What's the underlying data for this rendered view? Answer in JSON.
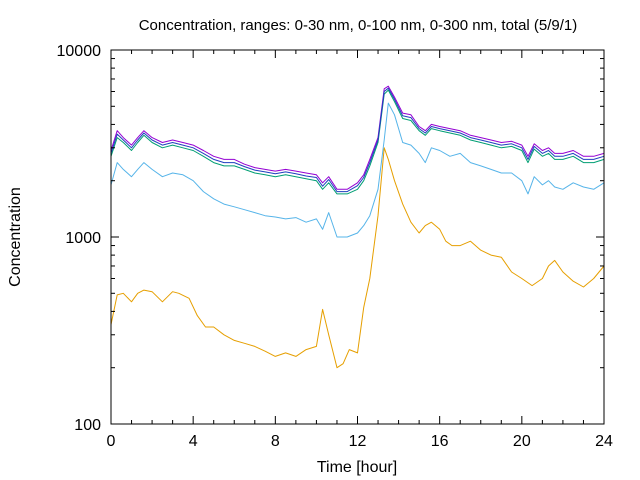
{
  "chart_data": {
    "type": "line",
    "title": "Concentration, ranges: 0-30 nm, 0-100 nm, 0-300 nm, total (5/9/1)",
    "xlabel": "Time [hour]",
    "ylabel": "Concentration",
    "xlim": [
      0,
      24
    ],
    "ylim": [
      100,
      10000
    ],
    "yscale": "log",
    "xticks": [
      0,
      4,
      8,
      12,
      16,
      20,
      24
    ],
    "xtick_labels": [
      "0",
      "4",
      "8",
      "12",
      "16",
      "20",
      "24"
    ],
    "yticks": [
      100,
      1000,
      10000
    ],
    "ytick_labels": [
      "100",
      "1000",
      "10000"
    ],
    "grid": false,
    "series": [
      {
        "color": "#e69f00",
        "x": [
          0,
          0.3,
          0.6,
          1,
          1.3,
          1.6,
          2,
          2.5,
          3,
          3.3,
          3.8,
          4.2,
          4.6,
          5,
          5.5,
          6,
          6.5,
          7,
          7.5,
          8,
          8.5,
          9,
          9.5,
          10,
          10.3,
          10.6,
          11,
          11.3,
          11.6,
          12,
          12.3,
          12.6,
          13,
          13.3,
          13.5,
          13.8,
          14.2,
          14.6,
          15,
          15.3,
          15.6,
          16,
          16.3,
          16.6,
          17,
          17.5,
          18,
          18.5,
          19,
          19.5,
          20,
          20.5,
          21,
          21.3,
          21.6,
          22,
          22.5,
          23,
          23.5,
          24
        ],
        "values": [
          340,
          490,
          500,
          450,
          500,
          520,
          510,
          450,
          510,
          500,
          470,
          380,
          330,
          330,
          300,
          280,
          270,
          260,
          245,
          230,
          240,
          230,
          250,
          260,
          410,
          300,
          200,
          210,
          250,
          240,
          420,
          600,
          1300,
          3000,
          2600,
          2000,
          1500,
          1200,
          1050,
          1150,
          1200,
          1100,
          950,
          900,
          900,
          950,
          850,
          800,
          780,
          650,
          600,
          550,
          600,
          700,
          750,
          650,
          580,
          540,
          600,
          700
        ]
      },
      {
        "color": "#56b4e9",
        "x": [
          0,
          0.3,
          0.6,
          1,
          1.3,
          1.6,
          2,
          2.5,
          3,
          3.5,
          4,
          4.5,
          5,
          5.5,
          6,
          6.5,
          7,
          7.5,
          8,
          8.5,
          9,
          9.5,
          10,
          10.3,
          10.6,
          11,
          11.5,
          12,
          12.3,
          12.6,
          13,
          13.3,
          13.5,
          13.8,
          14.2,
          14.6,
          15,
          15.3,
          15.6,
          16,
          16.5,
          17,
          17.5,
          18,
          18.5,
          19,
          19.5,
          20,
          20.3,
          20.6,
          21,
          21.3,
          21.6,
          22,
          22.5,
          23,
          23.5,
          24
        ],
        "values": [
          1900,
          2500,
          2300,
          2100,
          2300,
          2500,
          2300,
          2100,
          2200,
          2150,
          2000,
          1750,
          1600,
          1500,
          1450,
          1400,
          1350,
          1300,
          1280,
          1250,
          1270,
          1200,
          1250,
          1100,
          1350,
          1000,
          1000,
          1050,
          1150,
          1300,
          1800,
          3300,
          5200,
          4500,
          3200,
          3100,
          2800,
          2500,
          3000,
          2900,
          2700,
          2800,
          2500,
          2400,
          2300,
          2200,
          2200,
          2000,
          1700,
          2100,
          1900,
          2000,
          1850,
          1800,
          1950,
          1850,
          1800,
          1950
        ]
      },
      {
        "color": "#009e73",
        "x": [
          0,
          0.3,
          0.6,
          1,
          1.3,
          1.6,
          2,
          2.5,
          3,
          3.5,
          4,
          4.5,
          5,
          5.5,
          6,
          6.5,
          7,
          7.5,
          8,
          8.5,
          9,
          9.5,
          10,
          10.3,
          10.6,
          11,
          11.5,
          12,
          12.3,
          12.6,
          13,
          13.3,
          13.5,
          13.8,
          14.2,
          14.6,
          15,
          15.3,
          15.6,
          16,
          16.5,
          17,
          17.5,
          18,
          18.5,
          19,
          19.5,
          20,
          20.3,
          20.6,
          21,
          21.3,
          21.6,
          22,
          22.5,
          23,
          23.5,
          24
        ],
        "values": [
          2700,
          3400,
          3200,
          2900,
          3200,
          3500,
          3200,
          3000,
          3100,
          3000,
          2900,
          2700,
          2500,
          2400,
          2400,
          2300,
          2200,
          2150,
          2100,
          2150,
          2100,
          2050,
          2000,
          1800,
          1950,
          1700,
          1700,
          1800,
          2000,
          2400,
          3200,
          5800,
          6100,
          5300,
          4300,
          4200,
          3700,
          3500,
          3800,
          3700,
          3600,
          3500,
          3300,
          3200,
          3100,
          3000,
          3050,
          2900,
          2500,
          2950,
          2700,
          2800,
          2600,
          2600,
          2700,
          2500,
          2500,
          2600
        ]
      },
      {
        "color": "#9400d3",
        "x": [
          0,
          0.3,
          0.6,
          1,
          1.3,
          1.6,
          2,
          2.5,
          3,
          3.5,
          4,
          4.5,
          5,
          5.5,
          6,
          6.5,
          7,
          7.5,
          8,
          8.5,
          9,
          9.5,
          10,
          10.3,
          10.6,
          11,
          11.5,
          12,
          12.3,
          12.6,
          13,
          13.3,
          13.5,
          13.8,
          14.2,
          14.6,
          15,
          15.3,
          15.6,
          16,
          16.5,
          17,
          17.5,
          18,
          18.5,
          19,
          19.5,
          20,
          20.3,
          20.6,
          21,
          21.3,
          21.6,
          22,
          22.5,
          23,
          23.5,
          24
        ],
        "values": [
          2900,
          3700,
          3400,
          3100,
          3400,
          3700,
          3400,
          3200,
          3300,
          3200,
          3100,
          2900,
          2700,
          2600,
          2600,
          2450,
          2350,
          2300,
          2250,
          2300,
          2250,
          2200,
          2150,
          1950,
          2100,
          1800,
          1800,
          1950,
          2150,
          2600,
          3400,
          6200,
          6400,
          5600,
          4600,
          4500,
          3900,
          3700,
          4000,
          3900,
          3800,
          3700,
          3500,
          3400,
          3300,
          3200,
          3250,
          3100,
          2700,
          3150,
          2900,
          3000,
          2800,
          2800,
          2900,
          2700,
          2700,
          2800
        ]
      },
      {
        "color": "#1f3fbf",
        "x": [
          0,
          0.3,
          0.6,
          1,
          1.3,
          1.6,
          2,
          2.5,
          3,
          3.5,
          4,
          4.5,
          5,
          5.5,
          6,
          6.5,
          7,
          7.5,
          8,
          8.5,
          9,
          9.5,
          10,
          10.3,
          10.6,
          11,
          11.5,
          12,
          12.3,
          12.6,
          13,
          13.3,
          13.5,
          13.8,
          14.2,
          14.6,
          15,
          15.3,
          15.6,
          16,
          16.5,
          17,
          17.5,
          18,
          18.5,
          19,
          19.5,
          20,
          20.3,
          20.6,
          21,
          21.3,
          21.6,
          22,
          22.5,
          23,
          23.5,
          24
        ],
        "values": [
          2800,
          3550,
          3300,
          3000,
          3300,
          3600,
          3300,
          3100,
          3200,
          3100,
          3000,
          2800,
          2600,
          2500,
          2500,
          2380,
          2280,
          2230,
          2180,
          2230,
          2180,
          2120,
          2080,
          1870,
          2030,
          1750,
          1750,
          1880,
          2080,
          2500,
          3300,
          6000,
          6250,
          5450,
          4450,
          4350,
          3800,
          3600,
          3900,
          3800,
          3700,
          3600,
          3400,
          3300,
          3200,
          3100,
          3150,
          3000,
          2600,
          3050,
          2800,
          2900,
          2700,
          2700,
          2800,
          2600,
          2600,
          2700
        ]
      }
    ]
  }
}
